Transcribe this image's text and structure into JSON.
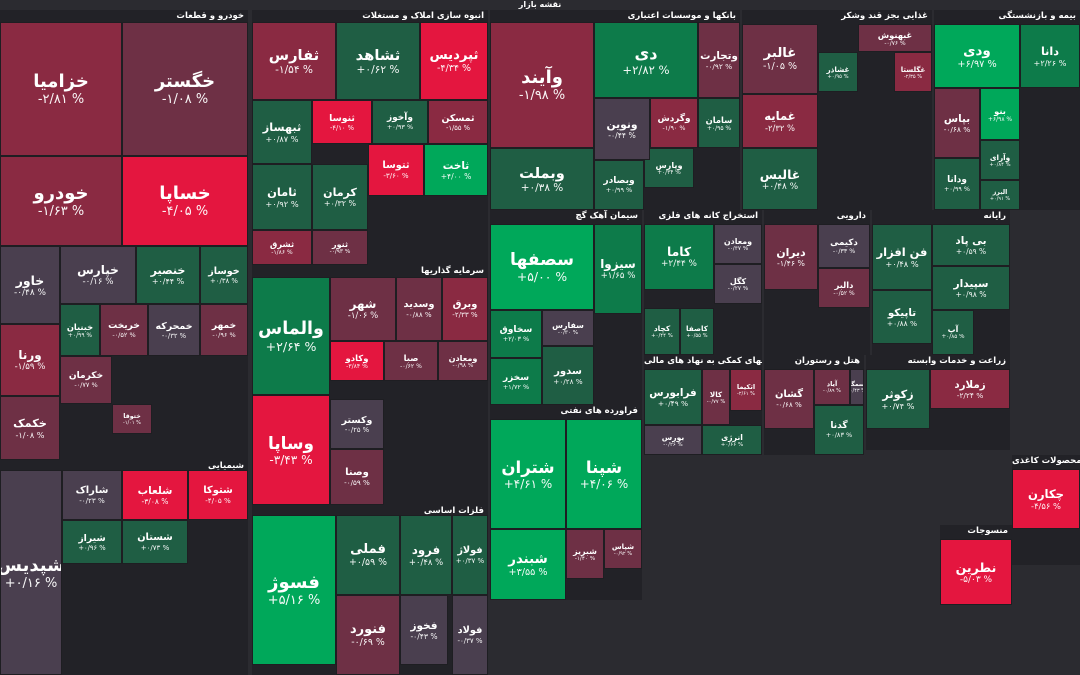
{
  "title": "نقشه بازار",
  "colors": {
    "up_strong": "#00a85a",
    "up_mid": "#0d7b4a",
    "up_light": "#1f5e44",
    "neutral": "#4a3f4f",
    "down_light": "#6e3045",
    "down_mid": "#8a2a42",
    "down_strong": "#e4163f"
  },
  "chart_data": {
    "type": "heatmap",
    "title": "نقشه بازار",
    "sectors": [
      {
        "name": "خودرو و قطعات",
        "tiles": [
          {
            "symbol": "خزامیا",
            "change": "-۲/۸۱ %",
            "value": -2.81
          },
          {
            "symbol": "خگستر",
            "change": "-۱/۰۸ %",
            "value": -1.08
          },
          {
            "symbol": "خودرو",
            "change": "-۱/۶۳ %",
            "value": -1.63
          },
          {
            "symbol": "خساپا",
            "change": "-۴/۰۵ %",
            "value": -4.05
          },
          {
            "symbol": "خاور",
            "change": "-۰/۴۸ %",
            "value": -0.48
          },
          {
            "symbol": "خپارس",
            "change": "-۰/۱۶ %",
            "value": -0.16
          },
          {
            "symbol": "خنصیر",
            "change": "+۰/۴۴ %",
            "value": 0.44
          },
          {
            "symbol": "خوساز",
            "change": "+۰/۳۸ %",
            "value": 0.38
          },
          {
            "symbol": "ورنا",
            "change": "-۱/۵۹ %",
            "value": -1.59
          },
          {
            "symbol": "خبنیان",
            "change": "+۰/۹۹ %",
            "value": 0.99
          },
          {
            "symbol": "خریخت",
            "change": "-۰/۵۲ %",
            "value": -0.52
          },
          {
            "symbol": "خمحرکه",
            "change": "-۰/۳۲ %",
            "value": -0.32
          },
          {
            "symbol": "خمهر",
            "change": "-۰/۹۶ %",
            "value": -0.96
          },
          {
            "symbol": "خکمک",
            "change": "-۱/۰۸ %",
            "value": -1.08
          },
          {
            "symbol": "خکرمان",
            "change": "-۰/۷۷ %",
            "value": -0.77
          },
          {
            "symbol": "ختوقا",
            "change": "-۱/۰۱ %",
            "value": -1.01
          }
        ]
      },
      {
        "name": "انبوه سازی املاک و مستغلات",
        "tiles": [
          {
            "symbol": "ثفارس",
            "change": "-۱/۵۴ %",
            "value": -1.54
          },
          {
            "symbol": "ثشاهد",
            "change": "+۰/۶۲ %",
            "value": 0.62
          },
          {
            "symbol": "ثپردیس",
            "change": "-۴/۳۴ %",
            "value": -4.34
          },
          {
            "symbol": "ثبهساز",
            "change": "+۰/۸۷ %",
            "value": 0.87
          },
          {
            "symbol": "ثنوسا",
            "change": "-۴/۱۰ %",
            "value": -4.1
          },
          {
            "symbol": "وآخوز",
            "change": "+۰/۹۳ %",
            "value": 0.93
          },
          {
            "symbol": "ثمسکن",
            "change": "-۱/۵۵ %",
            "value": -1.55
          },
          {
            "symbol": "ثامان",
            "change": "+۰/۹۲ %",
            "value": 0.92
          },
          {
            "symbol": "کرمان",
            "change": "+۰/۳۲ %",
            "value": 0.32
          },
          {
            "symbol": "ثتوسا",
            "change": "-۳/۶۰ %",
            "value": -3.6
          },
          {
            "symbol": "ثاخت",
            "change": "+۴/۰۰ %",
            "value": 4.0
          },
          {
            "symbol": "ثشرق",
            "change": "-۱/۸۶ %",
            "value": -1.86
          },
          {
            "symbol": "ثنور",
            "change": "-۰/۹۳ %",
            "value": -0.93
          }
        ]
      },
      {
        "name": "سرمایه گذاریها",
        "tiles": [
          {
            "symbol": "والماس",
            "change": "+۲/۶۴ %",
            "value": 2.64
          },
          {
            "symbol": "شهر",
            "change": "-۱/۰۶ %",
            "value": -1.06
          },
          {
            "symbol": "وسدید",
            "change": "-۰/۸۸ %",
            "value": -0.88
          },
          {
            "symbol": "وبرق",
            "change": "-۲/۳۳ %",
            "value": -2.33
          },
          {
            "symbol": "وساپا",
            "change": "-۳/۴۳ %",
            "value": -3.43
          },
          {
            "symbol": "وکادو",
            "change": "-۳/۸۴ %",
            "value": -3.84
          },
          {
            "symbol": "صبا",
            "change": "-۰/۶۲ %",
            "value": -0.62
          },
          {
            "symbol": "وکستر",
            "change": "-۰/۲۵ %",
            "value": -0.25
          },
          {
            "symbol": "ومعادن",
            "change": "-۰/۹۸ %",
            "value": -0.98
          },
          {
            "symbol": "وصنا",
            "change": "-۰/۵۹ %",
            "value": -0.59
          }
        ]
      },
      {
        "name": "شیمیایی",
        "tiles": [
          {
            "symbol": "شپدیس",
            "change": "+۰/۱۶ %",
            "value": 0.16
          },
          {
            "symbol": "شاراک",
            "change": "-۰/۲۳ %",
            "value": -0.23
          },
          {
            "symbol": "شتوکا",
            "change": "-۴/۰۵ %",
            "value": -4.05
          },
          {
            "symbol": "شلعاب",
            "change": "-۳/۰۸ %",
            "value": -3.08
          },
          {
            "symbol": "شیراز",
            "change": "+۰/۹۶ %",
            "value": 0.96
          },
          {
            "symbol": "شستان",
            "change": "+۰/۷۳ %",
            "value": 0.73
          }
        ]
      },
      {
        "name": "فلزات اساسی",
        "tiles": [
          {
            "symbol": "فسوژ",
            "change": "+۵/۱۶ %",
            "value": 5.16
          },
          {
            "symbol": "فملی",
            "change": "+۰/۵۹ %",
            "value": 0.59
          },
          {
            "symbol": "فرود",
            "change": "+۰/۴۸ %",
            "value": 0.48
          },
          {
            "symbol": "فولاژ",
            "change": "+۰/۳۷ %",
            "value": 0.37
          },
          {
            "symbol": "فخوز",
            "change": "-۰/۴۳ %",
            "value": -0.43
          },
          {
            "symbol": "فنورد",
            "change": "-۰/۶۹ %",
            "value": -0.69
          },
          {
            "symbol": "فولاد",
            "change": "-۰/۳۷ %",
            "value": -0.37
          }
        ]
      },
      {
        "name": "بانکها و موسسات اعتباری",
        "tiles": [
          {
            "symbol": "وآیند",
            "change": "-۱/۹۸ %",
            "value": -1.98
          },
          {
            "symbol": "دی",
            "change": "+۲/۸۲ %",
            "value": 2.82
          },
          {
            "symbol": "وتجارت",
            "change": "-۰/۹۲ %",
            "value": -0.92
          },
          {
            "symbol": "وبملت",
            "change": "+۰/۳۸ %",
            "value": 0.38
          },
          {
            "symbol": "وبصادر",
            "change": "+۰/۹۹ %",
            "value": 0.99
          },
          {
            "symbol": "وپارس",
            "change": "+۰/۳۴ %",
            "value": 0.34
          },
          {
            "symbol": "ونوین",
            "change": "-۰/۴۴ %",
            "value": -0.44
          },
          {
            "symbol": "وگردش",
            "change": "-۱/۹۰ %",
            "value": -1.9
          },
          {
            "symbol": "سامان",
            "change": "+۰/۹۵ %",
            "value": 0.95
          }
        ]
      },
      {
        "name": "سیمان آهک گچ",
        "tiles": [
          {
            "symbol": "سصفها",
            "change": "+۵/۰۰ %",
            "value": 5.0
          },
          {
            "symbol": "سیزوا",
            "change": "+۱/۶۵ %",
            "value": 1.65
          },
          {
            "symbol": "سخاوق",
            "change": "+۲/۰۳ %",
            "value": 2.03
          },
          {
            "symbol": "سفارس",
            "change": "-۰/۳۰ %",
            "value": -0.3
          },
          {
            "symbol": "سخزر",
            "change": "+۱/۷۲ %",
            "value": 1.72
          },
          {
            "symbol": "سدور",
            "change": "+۰/۲۸ %",
            "value": 0.28
          }
        ]
      },
      {
        "name": "فراورده های نفتی",
        "tiles": [
          {
            "symbol": "شتران",
            "change": "+۴/۶۱ %",
            "value": 4.61
          },
          {
            "symbol": "شپنا",
            "change": "+۴/۰۶ %",
            "value": 4.06
          },
          {
            "symbol": "شبندر",
            "change": "+۳/۵۵ %",
            "value": 3.55
          },
          {
            "symbol": "شبریز",
            "change": "-۱/۴۰ %",
            "value": -1.4
          },
          {
            "symbol": "شپاس",
            "change": "-۰/۹۲ %",
            "value": -0.92
          }
        ]
      },
      {
        "name": "غذایی بجز قند وشکر",
        "tiles": [
          {
            "symbol": "غالبر",
            "change": "-۱/۰۵ %",
            "value": -1.05
          },
          {
            "symbol": "غمایه",
            "change": "-۲/۳۲ %",
            "value": -2.32
          },
          {
            "symbol": "غالبس",
            "change": "+۰/۴۸ %",
            "value": 0.48
          },
          {
            "symbol": "غبهنوش",
            "change": "-۰/۷۶ %",
            "value": -0.76
          },
          {
            "symbol": "غگلستا",
            "change": "-۲/۳۵ %",
            "value": -2.35
          },
          {
            "symbol": "غشاذر",
            "change": "+۰/۹۵ %",
            "value": 0.95
          }
        ]
      },
      {
        "name": "بیمه و بازنشستگی",
        "tiles": [
          {
            "symbol": "ودی",
            "change": "+۶/۹۷ %",
            "value": 6.97
          },
          {
            "symbol": "بپاس",
            "change": "-۰/۶۸ %",
            "value": -0.68
          },
          {
            "symbol": "بنو",
            "change": "+۶/۹۸ %",
            "value": 6.98
          },
          {
            "symbol": "ودانا",
            "change": "+۰/۹۹ %",
            "value": 0.99
          },
          {
            "symbol": "وآرای",
            "change": "+۰/۸۴ %",
            "value": 0.84
          },
          {
            "symbol": "دانا",
            "change": "+۲/۲۶ %",
            "value": 2.26
          },
          {
            "symbol": "البرز",
            "change": "+۰/۹۱ %",
            "value": 0.91
          }
        ]
      },
      {
        "name": "استخراج کانه های فلزی",
        "tiles": [
          {
            "symbol": "کاما",
            "change": "+۲/۴۴ %",
            "value": 2.44
          },
          {
            "symbol": "ومعادن",
            "change": "-۰/۴۷ %",
            "value": -0.47
          },
          {
            "symbol": "کگل",
            "change": "-۰/۲۷ %",
            "value": -0.27
          },
          {
            "symbol": "کچاد",
            "change": "+۰/۴۴ %",
            "value": 0.44
          },
          {
            "symbol": "کاصفا",
            "change": "+۰/۵۵ %",
            "value": 0.55
          }
        ]
      },
      {
        "name": "دارویی",
        "tiles": [
          {
            "symbol": "دیران",
            "change": "-۱/۴۶ %",
            "value": -1.46
          },
          {
            "symbol": "دکیمی",
            "change": "-۰/۳۳ %",
            "value": -0.33
          },
          {
            "symbol": "دالبر",
            "change": "-۰/۵۲ %",
            "value": -0.52
          }
        ]
      },
      {
        "name": "رایانه",
        "tiles": [
          {
            "symbol": "فن افزار",
            "change": "+۰/۴۸ %",
            "value": 0.48
          },
          {
            "symbol": "بی پاد",
            "change": "+۰/۵۹ %",
            "value": 0.59
          },
          {
            "symbol": "تاپیکو",
            "change": "+۰/۸۸ %",
            "value": 0.88
          },
          {
            "symbol": "سپیدار",
            "change": "+۰/۹۸ %",
            "value": 0.98
          },
          {
            "symbol": "آپ",
            "change": "+۰/۸۵ %",
            "value": 0.85
          }
        ]
      },
      {
        "name": "فعالیتهای کمکی به نهاد های مالی",
        "tiles": [
          {
            "symbol": "فرابورس",
            "change": "+۰/۴۹ %",
            "value": 0.49
          },
          {
            "symbol": "کالا",
            "change": "-۰/۷۷ %",
            "value": -0.77
          },
          {
            "symbol": "اتکیما",
            "change": "-۲/۶۱ %",
            "value": -2.61
          },
          {
            "symbol": "بورس",
            "change": "-۰/۲۶ %",
            "value": -0.26
          },
          {
            "symbol": "انرژی",
            "change": "+۰/۶۶ %",
            "value": 0.66
          }
        ]
      },
      {
        "name": "هتل و رستوران",
        "tiles": [
          {
            "symbol": "گشان",
            "change": "-۰/۶۸ %",
            "value": -0.68
          },
          {
            "symbol": "آیاد",
            "change": "-۰/۸۹ %",
            "value": -0.89
          },
          {
            "symbol": "سمگا",
            "change": "-۰/۴۳ %",
            "value": -0.43
          },
          {
            "symbol": "گدنا",
            "change": "+۰/۸۳ %",
            "value": 0.83
          }
        ]
      },
      {
        "name": "زراعت و خدمات وابسته",
        "tiles": [
          {
            "symbol": "زکوثر",
            "change": "+۰/۷۴ %",
            "value": 0.74
          },
          {
            "symbol": "زملارد",
            "change": "-۲/۲۴ %",
            "value": -2.24
          }
        ]
      },
      {
        "name": "محصولات کاغذی",
        "tiles": [
          {
            "symbol": "چکارن",
            "change": "-۴/۵۶ %",
            "value": -4.56
          }
        ]
      },
      {
        "name": "منسوجات",
        "tiles": [
          {
            "symbol": "نطرین",
            "change": "-۵/۰۳ %",
            "value": -5.03
          }
        ]
      }
    ]
  }
}
